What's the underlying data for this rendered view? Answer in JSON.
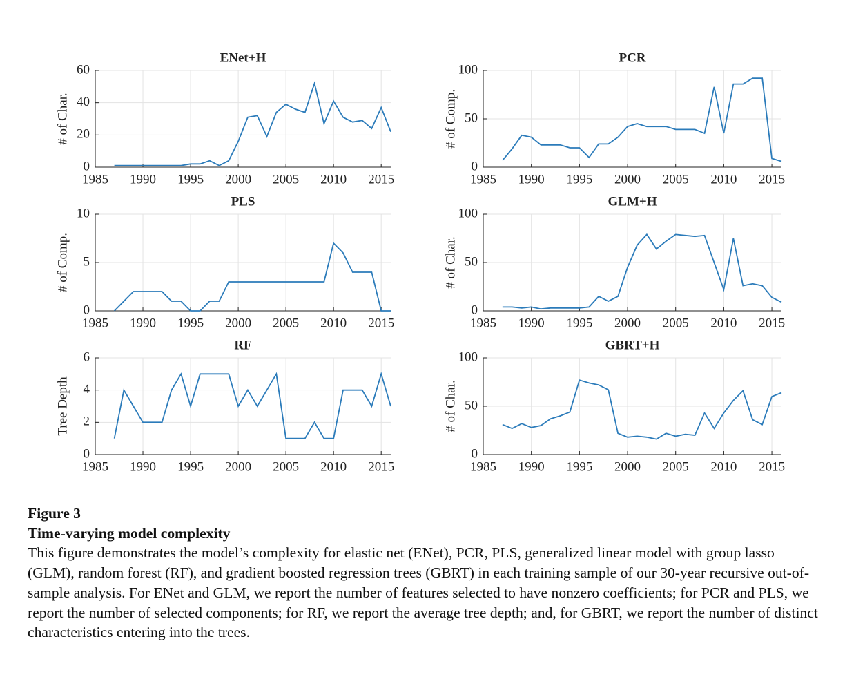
{
  "chart_data": [
    {
      "type": "line",
      "title": "ENet+H",
      "ylabel": "# of Char.",
      "color": "#2b7bba",
      "grid": true,
      "x": [
        1987,
        1988,
        1989,
        1990,
        1991,
        1992,
        1993,
        1994,
        1995,
        1996,
        1997,
        1998,
        1999,
        2000,
        2001,
        2002,
        2003,
        2004,
        2005,
        2006,
        2007,
        2008,
        2009,
        2010,
        2011,
        2012,
        2013,
        2014,
        2015,
        2016
      ],
      "values": [
        1,
        1,
        1,
        1,
        1,
        1,
        1,
        1,
        2,
        2,
        4,
        1,
        4,
        16,
        31,
        32,
        19,
        34,
        39,
        36,
        34,
        52,
        27,
        41,
        31,
        28,
        29,
        24,
        37,
        22
      ],
      "xlim": [
        1985,
        2016
      ],
      "xticks": [
        1985,
        1990,
        1995,
        2000,
        2005,
        2010,
        2015
      ],
      "ylim": [
        0,
        60
      ],
      "yticks": [
        0,
        20,
        40,
        60
      ]
    },
    {
      "type": "line",
      "title": "PCR",
      "ylabel": "# of Comp.",
      "color": "#2b7bba",
      "grid": true,
      "x": [
        1987,
        1988,
        1989,
        1990,
        1991,
        1992,
        1993,
        1994,
        1995,
        1996,
        1997,
        1998,
        1999,
        2000,
        2001,
        2002,
        2003,
        2004,
        2005,
        2006,
        2007,
        2008,
        2009,
        2010,
        2011,
        2012,
        2013,
        2014,
        2015,
        2016
      ],
      "values": [
        7,
        19,
        33,
        31,
        23,
        23,
        23,
        20,
        20,
        10,
        24,
        24,
        31,
        42,
        45,
        42,
        42,
        42,
        39,
        39,
        39,
        35,
        83,
        35,
        86,
        86,
        92,
        92,
        9,
        6
      ],
      "xlim": [
        1985,
        2016
      ],
      "xticks": [
        1985,
        1990,
        1995,
        2000,
        2005,
        2010,
        2015
      ],
      "ylim": [
        0,
        100
      ],
      "yticks": [
        0,
        50,
        100
      ]
    },
    {
      "type": "line",
      "title": "PLS",
      "ylabel": "# of Comp.",
      "color": "#2b7bba",
      "grid": true,
      "x": [
        1987,
        1988,
        1989,
        1990,
        1991,
        1992,
        1993,
        1994,
        1995,
        1996,
        1997,
        1998,
        1999,
        2000,
        2001,
        2002,
        2003,
        2004,
        2005,
        2006,
        2007,
        2008,
        2009,
        2010,
        2011,
        2012,
        2013,
        2014,
        2015,
        2016
      ],
      "values": [
        0,
        1,
        2,
        2,
        2,
        2,
        1,
        1,
        0,
        0,
        1,
        1,
        3,
        3,
        3,
        3,
        3,
        3,
        3,
        3,
        3,
        3,
        3,
        7,
        6,
        4,
        4,
        4,
        0,
        0
      ],
      "xlim": [
        1985,
        2016
      ],
      "xticks": [
        1985,
        1990,
        1995,
        2000,
        2005,
        2010,
        2015
      ],
      "ylim": [
        0,
        10
      ],
      "yticks": [
        0,
        5,
        10
      ]
    },
    {
      "type": "line",
      "title": "GLM+H",
      "ylabel": "# of Char.",
      "color": "#2b7bba",
      "grid": true,
      "x": [
        1987,
        1988,
        1989,
        1990,
        1991,
        1992,
        1993,
        1994,
        1995,
        1996,
        1997,
        1998,
        1999,
        2000,
        2001,
        2002,
        2003,
        2004,
        2005,
        2006,
        2007,
        2008,
        2009,
        2010,
        2011,
        2012,
        2013,
        2014,
        2015,
        2016
      ],
      "values": [
        4,
        4,
        3,
        4,
        2,
        3,
        3,
        3,
        3,
        4,
        15,
        10,
        15,
        45,
        68,
        79,
        64,
        72,
        79,
        78,
        77,
        78,
        50,
        22,
        75,
        26,
        28,
        26,
        14,
        9
      ],
      "xlim": [
        1985,
        2016
      ],
      "xticks": [
        1985,
        1990,
        1995,
        2000,
        2005,
        2010,
        2015
      ],
      "ylim": [
        0,
        100
      ],
      "yticks": [
        0,
        50,
        100
      ]
    },
    {
      "type": "line",
      "title": "RF",
      "ylabel": "Tree Depth",
      "color": "#2b7bba",
      "grid": true,
      "x": [
        1987,
        1988,
        1989,
        1990,
        1991,
        1992,
        1993,
        1994,
        1995,
        1996,
        1997,
        1998,
        1999,
        2000,
        2001,
        2002,
        2003,
        2004,
        2005,
        2006,
        2007,
        2008,
        2009,
        2010,
        2011,
        2012,
        2013,
        2014,
        2015,
        2016
      ],
      "values": [
        1,
        4,
        3,
        2,
        2,
        2,
        4,
        5,
        3,
        5,
        5,
        5,
        5,
        3,
        4,
        3,
        4,
        5,
        1,
        1,
        1,
        2,
        1,
        1,
        4,
        4,
        4,
        3,
        5,
        3
      ],
      "xlim": [
        1985,
        2016
      ],
      "xticks": [
        1985,
        1990,
        1995,
        2000,
        2005,
        2010,
        2015
      ],
      "ylim": [
        0,
        6
      ],
      "yticks": [
        0,
        2,
        4,
        6
      ]
    },
    {
      "type": "line",
      "title": "GBRT+H",
      "ylabel": "# of Char.",
      "color": "#2b7bba",
      "grid": true,
      "x": [
        1987,
        1988,
        1989,
        1990,
        1991,
        1992,
        1993,
        1994,
        1995,
        1996,
        1997,
        1998,
        1999,
        2000,
        2001,
        2002,
        2003,
        2004,
        2005,
        2006,
        2007,
        2008,
        2009,
        2010,
        2011,
        2012,
        2013,
        2014,
        2015,
        2016
      ],
      "values": [
        31,
        27,
        32,
        28,
        30,
        37,
        40,
        44,
        77,
        74,
        72,
        67,
        22,
        18,
        19,
        18,
        16,
        22,
        19,
        21,
        20,
        43,
        27,
        43,
        56,
        66,
        36,
        31,
        60,
        64
      ],
      "xlim": [
        1985,
        2016
      ],
      "xticks": [
        1985,
        1990,
        1995,
        2000,
        2005,
        2010,
        2015
      ],
      "ylim": [
        0,
        100
      ],
      "yticks": [
        0,
        50,
        100
      ]
    }
  ],
  "caption": {
    "label": "Figure 3",
    "title": "Time-varying model complexity",
    "text": "This figure demonstrates the model’s complexity for elastic net (ENet), PCR, PLS, generalized linear model with group lasso (GLM), random forest (RF), and gradient boosted regression trees (GBRT) in each training sample of our 30-year recursive out-of-sample analysis. For ENet and GLM, we report the number of features selected to have nonzero coefficients; for PCR and PLS, we report the number of selected components; for RF, we report the average tree depth; and, for GBRT, we report the number of distinct characteristics entering into the trees."
  }
}
